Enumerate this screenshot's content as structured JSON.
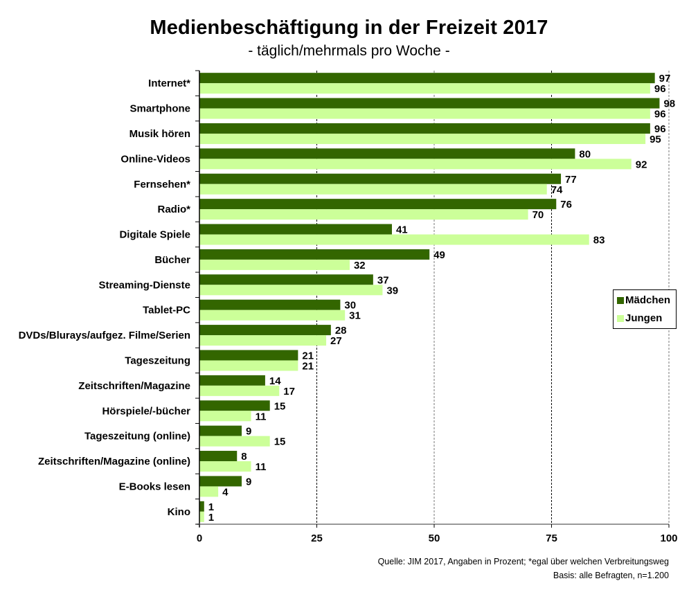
{
  "chart_data": {
    "type": "bar",
    "orientation": "horizontal",
    "title": "Medienbeschäftigung in der Freizeit 2017",
    "subtitle": "- täglich/mehrmals pro Woche -",
    "xlabel": "",
    "ylabel": "",
    "xlim": [
      0,
      100
    ],
    "xticks": [
      0,
      25,
      50,
      75,
      100
    ],
    "xtick_labels": [
      "0",
      "25",
      "50",
      "75",
      "100"
    ],
    "grid": "vertical dashed at 25, 50, 75, 100",
    "legend_position": "right",
    "categories": [
      "Internet*",
      "Smartphone",
      "Musik hören",
      "Online-Videos",
      "Fernsehen*",
      "Radio*",
      "Digitale Spiele",
      "Bücher",
      "Streaming-Dienste",
      "Tablet-PC",
      "DVDs/Blurays/aufgez. Filme/Serien",
      "Tageszeitung",
      "Zeitschriften/Magazine",
      "Hörspiele/-bücher",
      "Tageszeitung (online)",
      "Zeitschriften/Magazine (online)",
      "E-Books lesen",
      "Kino"
    ],
    "series": [
      {
        "name": "Mädchen",
        "color": "#336600",
        "values": [
          97,
          98,
          96,
          80,
          77,
          76,
          41,
          49,
          37,
          30,
          28,
          21,
          14,
          15,
          9,
          8,
          9,
          1
        ]
      },
      {
        "name": "Jungen",
        "color": "#ccff99",
        "values": [
          96,
          96,
          95,
          92,
          74,
          70,
          83,
          32,
          39,
          31,
          27,
          21,
          17,
          11,
          15,
          11,
          4,
          1
        ]
      }
    ]
  },
  "footer": {
    "source": "Quelle: JIM 2017, Angaben in Prozent; *egal über welchen Verbreitungsweg",
    "basis": "Basis: alle Befragten, n=1.200"
  }
}
